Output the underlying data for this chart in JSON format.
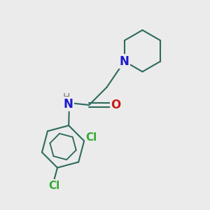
{
  "bg_color": "#ebebeb",
  "bond_color": "#2d6b5e",
  "n_color": "#1a1acc",
  "o_color": "#cc1a1a",
  "cl_color": "#33aa33",
  "h_color": "#777777",
  "bond_width": 1.5,
  "figsize": [
    3.0,
    3.0
  ],
  "dpi": 100,
  "xlim": [
    0,
    10
  ],
  "ylim": [
    0,
    10
  ]
}
